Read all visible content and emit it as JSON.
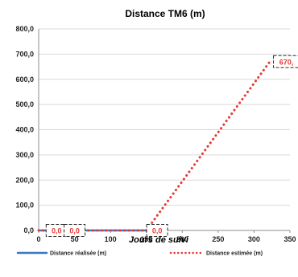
{
  "chart_data": {
    "type": "line",
    "title": "Distance TM6 (m)",
    "xlabel": "Jours de suivi",
    "ylabel": "",
    "xlim": [
      0,
      350
    ],
    "ylim": [
      0,
      800
    ],
    "xticks": [
      "0",
      "50",
      "100",
      "150",
      "200",
      "250",
      "300",
      "350"
    ],
    "yticks": [
      "0,0",
      "100,0",
      "200,0",
      "300,0",
      "400,0",
      "500,0",
      "600,0",
      "700,0",
      "800,0"
    ],
    "grid": "horizontal",
    "legend_position": "bottom",
    "series": [
      {
        "name": "Distance réalisée (m)",
        "color": "#3a78c4",
        "style": "solid",
        "points": [
          [
            0,
            0
          ],
          [
            150,
            0
          ]
        ]
      },
      {
        "name": "Distance estimée (m)",
        "color": "#e53935",
        "style": "dotted",
        "points": [
          [
            0,
            0
          ],
          [
            150,
            0
          ],
          [
            322,
            670
          ]
        ]
      }
    ],
    "data_labels": [
      {
        "x": 25,
        "y": 0,
        "text": "0,0"
      },
      {
        "x": 50,
        "y": 0,
        "text": "0,0"
      },
      {
        "x": 165,
        "y": 0,
        "text": "0,0"
      },
      {
        "x": 345,
        "y": 670,
        "text": "670,"
      }
    ]
  }
}
